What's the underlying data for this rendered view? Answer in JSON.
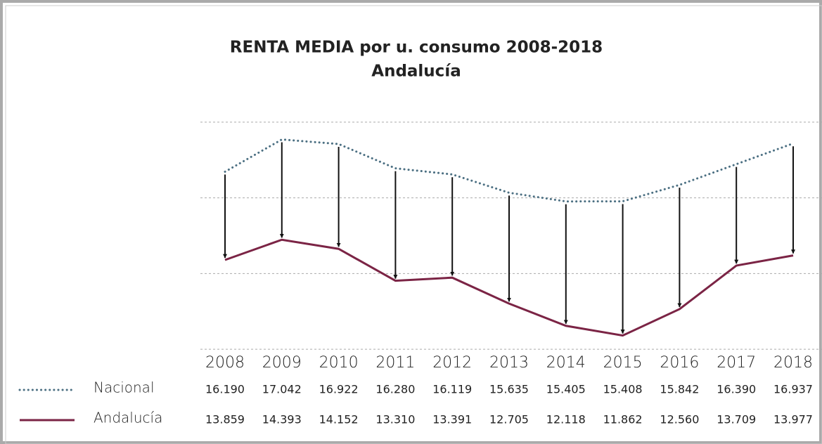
{
  "chart_data": {
    "type": "line",
    "title": "RENTA MEDIA por u. consumo 2008-2018",
    "subtitle": "Andalucía",
    "categories": [
      "2008",
      "2009",
      "2010",
      "2011",
      "2012",
      "2013",
      "2014",
      "2015",
      "2016",
      "2017",
      "2018"
    ],
    "series": [
      {
        "name": "Nacional",
        "color": "#4b6f82",
        "style": "dotted",
        "values": [
          16190,
          17042,
          16922,
          16280,
          16119,
          15635,
          15405,
          15408,
          15842,
          16390,
          16937
        ],
        "value_labels": [
          "16.190",
          "17.042",
          "16.922",
          "16.280",
          "16.119",
          "15.635",
          "15.405",
          "15.408",
          "15.842",
          "16.390",
          "16.937"
        ]
      },
      {
        "name": "Andalucía",
        "color": "#7b2445",
        "style": "solid",
        "values": [
          13859,
          14393,
          14152,
          13310,
          13391,
          12705,
          12118,
          11862,
          12560,
          13709,
          13977
        ],
        "value_labels": [
          "13.859",
          "14.393",
          "14.152",
          "13.310",
          "13.391",
          "12.705",
          "12.118",
          "11.862",
          "12.560",
          "13.709",
          "13.977"
        ]
      }
    ],
    "ylim": [
      11000,
      18500
    ],
    "grid_lines": [
      11500,
      13500,
      15500,
      17500
    ]
  }
}
